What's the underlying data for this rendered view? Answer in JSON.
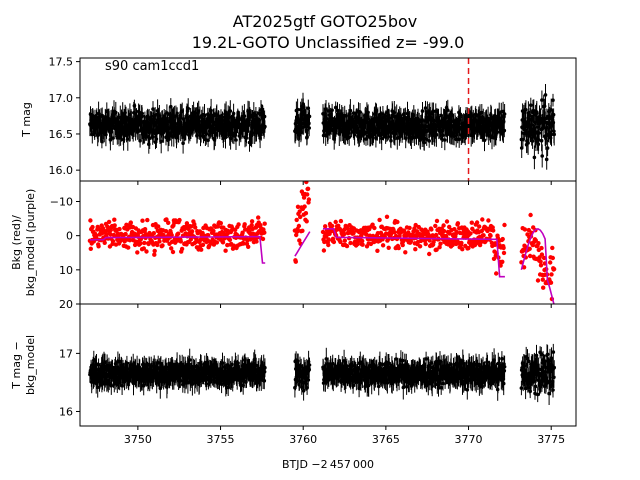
{
  "chart_data": {
    "type": "scatter",
    "title_line1": "AT2025gtf  GOTO25bov",
    "title_line2": "19.2L-GOTO Unclassified z= -99.0",
    "annotation": "s90 cam1ccd1",
    "xlabel": "BTJD −2 457 000",
    "xlim": [
      3746.5,
      3776.5
    ],
    "xticks": [
      3750,
      3755,
      3760,
      3765,
      3770,
      3775
    ],
    "xtick_labels": [
      "3750",
      "3755",
      "3760",
      "3765",
      "3770",
      "3775"
    ],
    "segments": [
      [
        3747.1,
        3757.7
      ],
      [
        3759.5,
        3760.4
      ],
      [
        3761.2,
        3772.2
      ],
      [
        3773.2,
        3775.2
      ]
    ],
    "vline_x": 3770.0,
    "vline_color": "#e41a1c",
    "panels": [
      {
        "name": "T mag",
        "ylabel": [
          "T mag"
        ],
        "ylim": [
          17.55,
          15.85
        ],
        "yticks": [
          16.0,
          16.5,
          17.0,
          17.5
        ],
        "ytick_labels": [
          "16.0",
          "16.5",
          "17.0",
          "17.5"
        ],
        "color": "#000000",
        "level": 16.62,
        "spread": 0.17
      },
      {
        "name": "Bkg (red)/ bkg_model (purple)",
        "ylabel": [
          "Bkg (red)/",
          "bkg_model (purple)"
        ],
        "ylim": [
          -16,
          20
        ],
        "yticks": [
          -10,
          0,
          10,
          20
        ],
        "ytick_labels": [
          "−10",
          "0",
          "10",
          "20"
        ],
        "color": "#ff0000",
        "model_color": "#bf00bf",
        "level": 0,
        "spread": 3.5
      },
      {
        "name": "T mag − bkg_model",
        "ylabel": [
          "T mag −",
          "bkg_model"
        ],
        "ylim": [
          17.85,
          15.75
        ],
        "yticks": [
          16,
          17
        ],
        "ytick_labels": [
          "16",
          "17"
        ],
        "color": "#000000",
        "level": 16.65,
        "spread": 0.17
      }
    ]
  }
}
